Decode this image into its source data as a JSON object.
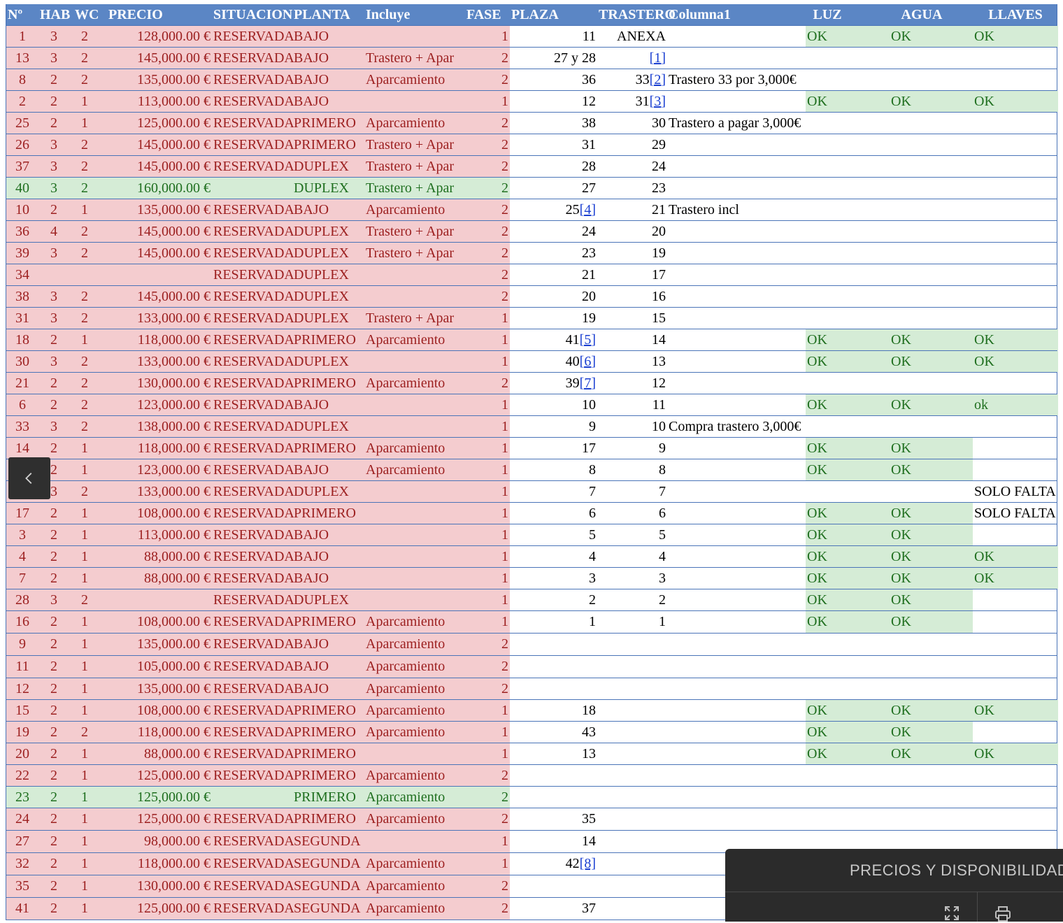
{
  "headers": [
    "Nº",
    "HAB",
    "WC",
    "PRECIO",
    "SITUACION",
    "PLANTA",
    "Incluye",
    "FASE",
    "PLAZA",
    "TRASTERO",
    "Columna1",
    "LUZ",
    "AGUA",
    "LLAVES"
  ],
  "rows": [
    {
      "n": "1",
      "hab": "3",
      "wc": "2",
      "precio": "128,000.00 €",
      "situacion": "RESERVADA",
      "planta": "BAJO",
      "incluye": "",
      "fase": "1",
      "plaza": "11",
      "trastero": "ANEXA",
      "col1": "",
      "luz": "OK",
      "agua": "OK",
      "llaves": "OK",
      "status": "reserved"
    },
    {
      "n": "13",
      "hab": "3",
      "wc": "2",
      "precio": "145,000.00 €",
      "situacion": "RESERVADA",
      "planta": "BAJO",
      "incluye": "Trastero + Apar",
      "fase": "2",
      "plaza": "27 y 28",
      "trastero": "",
      "trastero_ref": "[1]",
      "col1": "",
      "luz": "",
      "agua": "",
      "llaves": "",
      "status": "reserved"
    },
    {
      "n": "8",
      "hab": "2",
      "wc": "2",
      "precio": "135,000.00 €",
      "situacion": "RESERVADA",
      "planta": "BAJO",
      "incluye": "Aparcamiento",
      "fase": "2",
      "plaza": "36",
      "trastero": "33",
      "trastero_ref": "[2]",
      "col1": "Trastero 33 por 3,000€",
      "luz": "",
      "agua": "",
      "llaves": "",
      "status": "reserved"
    },
    {
      "n": "2",
      "hab": "2",
      "wc": "1",
      "precio": "113,000.00 €",
      "situacion": "RESERVADA",
      "planta": "BAJO",
      "incluye": "",
      "fase": "1",
      "plaza": "12",
      "trastero": "31",
      "trastero_ref": "[3]",
      "col1": "",
      "luz": "OK",
      "agua": "OK",
      "llaves": "OK",
      "status": "reserved"
    },
    {
      "n": "25",
      "hab": "2",
      "wc": "1",
      "precio": "125,000.00 €",
      "situacion": "RESERVADA",
      "planta": "PRIMERO",
      "incluye": "Aparcamiento",
      "fase": "2",
      "plaza": "38",
      "trastero": "30",
      "col1": "Trastero a pagar 3,000€",
      "luz": "",
      "agua": "",
      "llaves": "",
      "status": "reserved"
    },
    {
      "n": "26",
      "hab": "3",
      "wc": "2",
      "precio": "145,000.00 €",
      "situacion": "RESERVADA",
      "planta": "PRIMERO",
      "incluye": "Trastero + Apar",
      "fase": "2",
      "plaza": "31",
      "trastero": "29",
      "col1": "",
      "luz": "",
      "agua": "",
      "llaves": "",
      "status": "reserved"
    },
    {
      "n": "37",
      "hab": "3",
      "wc": "2",
      "precio": "145,000.00 €",
      "situacion": "RESERVADA",
      "planta": "DUPLEX",
      "incluye": "Trastero + Apar",
      "fase": "2",
      "plaza": "28",
      "trastero": "24",
      "col1": "",
      "luz": "",
      "agua": "",
      "llaves": "",
      "status": "reserved"
    },
    {
      "n": "40",
      "hab": "3",
      "wc": "2",
      "precio": "160,000.00 €",
      "situacion": "",
      "planta": "DUPLEX",
      "incluye": "Trastero + Apar",
      "fase": "2",
      "plaza": "27",
      "trastero": "23",
      "col1": "",
      "luz": "",
      "agua": "",
      "llaves": "",
      "status": "available"
    },
    {
      "n": "10",
      "hab": "2",
      "wc": "1",
      "precio": "135,000.00 €",
      "situacion": "RESERVADA",
      "planta": "BAJO",
      "incluye": "Aparcamiento",
      "fase": "2",
      "plaza": "25",
      "plaza_ref": "[4]",
      "trastero": "21",
      "col1": "Trastero incl",
      "luz": "",
      "agua": "",
      "llaves": "",
      "status": "reserved"
    },
    {
      "n": "36",
      "hab": "4",
      "wc": "2",
      "precio": "145,000.00 €",
      "situacion": "RESERVADA",
      "planta": "DUPLEX",
      "incluye": "Trastero + Apar",
      "fase": "2",
      "plaza": "24",
      "trastero": "20",
      "col1": "",
      "luz": "",
      "agua": "",
      "llaves": "",
      "status": "reserved"
    },
    {
      "n": "39",
      "hab": "3",
      "wc": "2",
      "precio": "145,000.00 €",
      "situacion": "RESERVADA",
      "planta": "DUPLEX",
      "incluye": "Trastero + Apar",
      "fase": "2",
      "plaza": "23",
      "trastero": "19",
      "col1": "",
      "luz": "",
      "agua": "",
      "llaves": "",
      "status": "reserved"
    },
    {
      "n": "34",
      "hab": "",
      "wc": "",
      "precio": "",
      "situacion": "RESERVADA",
      "planta": "DUPLEX",
      "incluye": "",
      "fase": "2",
      "plaza": "21",
      "trastero": "17",
      "col1": "",
      "luz": "",
      "agua": "",
      "llaves": "",
      "status": "reserved"
    },
    {
      "n": "38",
      "hab": "3",
      "wc": "2",
      "precio": "145,000.00 €",
      "situacion": "RESERVADA",
      "planta": "DUPLEX",
      "incluye": "",
      "fase": "2",
      "plaza": "20",
      "trastero": "16",
      "col1": "",
      "luz": "",
      "agua": "",
      "llaves": "",
      "status": "reserved"
    },
    {
      "n": "31",
      "hab": "3",
      "wc": "2",
      "precio": "133,000.00 €",
      "situacion": "RESERVADA",
      "planta": "DUPLEX",
      "incluye": "Trastero + Apar",
      "fase": "1",
      "plaza": "19",
      "trastero": "15",
      "col1": "",
      "luz": "",
      "agua": "",
      "llaves": "",
      "status": "reserved"
    },
    {
      "n": "18",
      "hab": "2",
      "wc": "1",
      "precio": "118,000.00 €",
      "situacion": "RESERVADA",
      "planta": "PRIMERO",
      "incluye": "Aparcamiento",
      "fase": "1",
      "plaza": "41",
      "plaza_ref": "[5]",
      "trastero": "14",
      "col1": "",
      "luz": "OK",
      "agua": "OK",
      "llaves": "OK",
      "status": "reserved"
    },
    {
      "n": "30",
      "hab": "3",
      "wc": "2",
      "precio": "133,000.00 €",
      "situacion": "RESERVADA",
      "planta": "DUPLEX",
      "incluye": "",
      "fase": "1",
      "plaza": "40",
      "plaza_ref": "[6]",
      "trastero": "13",
      "col1": "",
      "luz": "OK",
      "agua": "OK",
      "llaves": "OK",
      "status": "reserved"
    },
    {
      "n": "21",
      "hab": "2",
      "wc": "2",
      "precio": "130,000.00 €",
      "situacion": "RESERVADA",
      "planta": "PRIMERO",
      "incluye": "Aparcamiento",
      "fase": "2",
      "plaza": "39",
      "plaza_ref": "[7]",
      "trastero": "12",
      "col1": "",
      "luz": "",
      "agua": "",
      "llaves": "",
      "status": "reserved"
    },
    {
      "n": "6",
      "hab": "2",
      "wc": "2",
      "precio": "123,000.00 €",
      "situacion": "RESERVADA",
      "planta": "BAJO",
      "incluye": "",
      "fase": "1",
      "plaza": "10",
      "trastero": "11",
      "col1": "",
      "luz": "OK",
      "agua": "OK",
      "llaves": "ok",
      "status": "reserved"
    },
    {
      "n": "33",
      "hab": "3",
      "wc": "2",
      "precio": "138,000.00 €",
      "situacion": "RESERVADA",
      "planta": "DUPLEX",
      "incluye": "",
      "fase": "1",
      "plaza": "9",
      "trastero": "10",
      "col1": "Compra trastero 3,000€",
      "luz": "",
      "agua": "",
      "llaves": "",
      "status": "reserved"
    },
    {
      "n": "14",
      "hab": "2",
      "wc": "1",
      "precio": "118,000.00 €",
      "situacion": "RESERVADA",
      "planta": "PRIMERO",
      "incluye": "Aparcamiento",
      "fase": "1",
      "plaza": "17",
      "trastero": "9",
      "col1": "",
      "luz": "OK",
      "agua": "OK",
      "llaves": "",
      "status": "reserved"
    },
    {
      "n": "",
      "hab": "2",
      "wc": "1",
      "precio": "123,000.00 €",
      "situacion": "RESERVADA",
      "planta": "BAJO",
      "incluye": "Aparcamiento",
      "fase": "1",
      "plaza": "8",
      "trastero": "8",
      "col1": "",
      "luz": "OK",
      "agua": "OK",
      "llaves": "",
      "status": "reserved"
    },
    {
      "n": "",
      "hab": "3",
      "wc": "2",
      "precio": "133,000.00 €",
      "situacion": "RESERVADA",
      "planta": "DUPLEX",
      "incluye": "",
      "fase": "1",
      "plaza": "7",
      "trastero": "7",
      "col1": "",
      "luz": "",
      "agua": "",
      "llaves": "SOLO FALTA",
      "status": "reserved"
    },
    {
      "n": "17",
      "hab": "2",
      "wc": "1",
      "precio": "108,000.00 €",
      "situacion": "RESERVADA",
      "planta": "PRIMERO",
      "incluye": "",
      "fase": "1",
      "plaza": "6",
      "trastero": "6",
      "col1": "",
      "luz": "OK",
      "agua": "OK",
      "llaves": "SOLO FALTA",
      "status": "reserved"
    },
    {
      "n": "3",
      "hab": "2",
      "wc": "1",
      "precio": "113,000.00 €",
      "situacion": "RESERVADA",
      "planta": "BAJO",
      "incluye": "",
      "fase": "1",
      "plaza": "5",
      "trastero": "5",
      "col1": "",
      "luz": "OK",
      "agua": "OK",
      "llaves": "",
      "status": "reserved"
    },
    {
      "n": "4",
      "hab": "2",
      "wc": "1",
      "precio": "88,000.00 €",
      "situacion": "RESERVADA",
      "planta": "BAJO",
      "incluye": "",
      "fase": "1",
      "plaza": "4",
      "trastero": "4",
      "col1": "",
      "luz": "OK",
      "agua": "OK",
      "llaves": "OK",
      "status": "reserved"
    },
    {
      "n": "7",
      "hab": "2",
      "wc": "1",
      "precio": "88,000.00 €",
      "situacion": "RESERVADA",
      "planta": "BAJO",
      "incluye": "",
      "fase": "1",
      "plaza": "3",
      "trastero": "3",
      "col1": "",
      "luz": "OK",
      "agua": "OK",
      "llaves": "OK",
      "status": "reserved"
    },
    {
      "n": "28",
      "hab": "3",
      "wc": "2",
      "precio": "",
      "situacion": "RESERVADA",
      "planta": "DUPLEX",
      "incluye": "",
      "fase": "1",
      "plaza": "2",
      "trastero": "2",
      "col1": "",
      "luz": "OK",
      "agua": "OK",
      "llaves": "",
      "status": "reserved"
    },
    {
      "n": "16",
      "hab": "2",
      "wc": "1",
      "precio": "108,000.00 €",
      "situacion": "RESERVADA",
      "planta": "PRIMERO",
      "incluye": "Aparcamiento",
      "fase": "1",
      "plaza": "1",
      "trastero": "1",
      "col1": "",
      "luz": "OK",
      "agua": "OK",
      "llaves": "",
      "status": "reserved"
    },
    {
      "n": "9",
      "hab": "2",
      "wc": "1",
      "precio": "135,000.00 €",
      "situacion": "RESERVADA",
      "planta": "BAJO",
      "incluye": "Aparcamiento",
      "fase": "2",
      "plaza": "",
      "trastero": "",
      "col1": "",
      "luz": "",
      "agua": "",
      "llaves": "",
      "status": "reserved"
    },
    {
      "n": "11",
      "hab": "2",
      "wc": "1",
      "precio": "105,000.00 €",
      "situacion": "RESERVADA",
      "planta": "BAJO",
      "incluye": "Aparcamiento",
      "fase": "2",
      "plaza": "",
      "trastero": "",
      "col1": "",
      "luz": "",
      "agua": "",
      "llaves": "",
      "status": "reserved"
    },
    {
      "n": "12",
      "hab": "2",
      "wc": "1",
      "precio": "135,000.00 €",
      "situacion": "RESERVADA",
      "planta": "BAJO",
      "incluye": "Aparcamiento",
      "fase": "2",
      "plaza": "",
      "trastero": "",
      "col1": "",
      "luz": "",
      "agua": "",
      "llaves": "",
      "status": "reserved"
    },
    {
      "n": "15",
      "hab": "2",
      "wc": "1",
      "precio": "108,000.00 €",
      "situacion": "RESERVADA",
      "planta": "PRIMERO",
      "incluye": "Aparcamiento",
      "fase": "1",
      "plaza": "18",
      "trastero": "",
      "col1": "",
      "luz": "OK",
      "agua": "OK",
      "llaves": "OK",
      "status": "reserved"
    },
    {
      "n": "19",
      "hab": "2",
      "wc": "2",
      "precio": "118,000.00 €",
      "situacion": "RESERVADA",
      "planta": "PRIMERO",
      "incluye": "Aparcamiento",
      "fase": "1",
      "plaza": "43",
      "trastero": "",
      "col1": "",
      "luz": "OK",
      "agua": "OK",
      "llaves": "",
      "status": "reserved"
    },
    {
      "n": "20",
      "hab": "2",
      "wc": "1",
      "precio": "88,000.00 €",
      "situacion": "RESERVADA",
      "planta": "PRIMERO",
      "incluye": "",
      "fase": "1",
      "plaza": "13",
      "trastero": "",
      "col1": "",
      "luz": "OK",
      "agua": "OK",
      "llaves": "OK",
      "status": "reserved"
    },
    {
      "n": "22",
      "hab": "2",
      "wc": "1",
      "precio": "125,000.00 €",
      "situacion": "RESERVADA",
      "planta": "PRIMERO",
      "incluye": "Aparcamiento",
      "fase": "2",
      "plaza": "",
      "trastero": "",
      "col1": "",
      "luz": "",
      "agua": "",
      "llaves": "",
      "status": "reserved"
    },
    {
      "n": "23",
      "hab": "2",
      "wc": "1",
      "precio": "125,000.00 €",
      "situacion": "",
      "planta": "PRIMERO",
      "incluye": "Aparcamiento",
      "fase": "2",
      "plaza": "",
      "trastero": "",
      "col1": "",
      "luz": "",
      "agua": "",
      "llaves": "",
      "status": "available"
    },
    {
      "n": "24",
      "hab": "2",
      "wc": "1",
      "precio": "125,000.00 €",
      "situacion": "RESERVADA",
      "planta": "PRIMERO",
      "incluye": "Aparcamiento",
      "fase": "2",
      "plaza": "35",
      "trastero": "",
      "col1": "",
      "luz": "",
      "agua": "",
      "llaves": "",
      "status": "reserved"
    },
    {
      "n": "27",
      "hab": "2",
      "wc": "1",
      "precio": "98,000.00 €",
      "situacion": "RESERVADA",
      "planta": "SEGUNDA",
      "incluye": "",
      "fase": "1",
      "plaza": "14",
      "trastero": "",
      "col1": "",
      "luz": "",
      "agua": "",
      "llaves": "",
      "status": "reserved"
    },
    {
      "n": "32",
      "hab": "2",
      "wc": "1",
      "precio": "118,000.00 €",
      "situacion": "RESERVADA",
      "planta": "SEGUNDA",
      "incluye": "Aparcamiento",
      "fase": "1",
      "plaza": "42",
      "plaza_ref": "[8]",
      "trastero": "",
      "col1": "",
      "luz": "",
      "agua": "",
      "llaves": "",
      "status": "reserved"
    },
    {
      "n": "35",
      "hab": "2",
      "wc": "1",
      "precio": "130,000.00 €",
      "situacion": "RESERVADA",
      "planta": "SEGUNDA",
      "incluye": "Aparcamiento",
      "fase": "2",
      "plaza": "",
      "trastero": "",
      "col1": "",
      "luz": "",
      "agua": "",
      "llaves": "",
      "status": "reserved"
    },
    {
      "n": "41",
      "hab": "2",
      "wc": "1",
      "precio": "125,000.00 €",
      "situacion": "RESERVADA",
      "planta": "SEGUNDA",
      "incluye": "Aparcamiento",
      "fase": "2",
      "plaza": "37",
      "trastero": "",
      "col1": "",
      "luz": "",
      "agua": "",
      "llaves": "",
      "status": "reserved"
    }
  ],
  "panel": {
    "title": "PRECIOS Y DISPONIBILIDAD",
    "expand_icon": "expand-icon",
    "print_icon": "print-icon"
  },
  "nav": {
    "prev_icon": "chevron-left-icon"
  },
  "colors": {
    "header_bg": "#5b86c5",
    "reserved_bg": "#f4cccf",
    "available_bg": "#d5ecd6",
    "ok_bg": "#d5ecd6",
    "red_text": "#9c1f1f",
    "green_text": "#1f6f1f",
    "grid": "#4a74b8"
  }
}
